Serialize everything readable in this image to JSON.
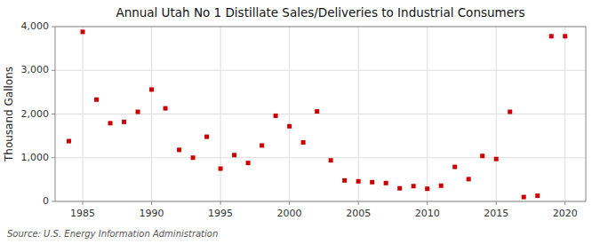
{
  "chart_data": {
    "type": "scatter",
    "title": "Annual Utah No 1 Distillate Sales/Deliveries to Industrial Consumers",
    "ylabel": "Thousand Gallons",
    "annotations": [
      "Source: U.S. Energy Information Administration"
    ],
    "x": [
      1984,
      1985,
      1986,
      1987,
      1988,
      1989,
      1990,
      1991,
      1992,
      1993,
      1994,
      1995,
      1996,
      1997,
      1998,
      1999,
      2000,
      2001,
      2002,
      2003,
      2004,
      2005,
      2006,
      2007,
      2008,
      2009,
      2010,
      2011,
      2012,
      2013,
      2014,
      2015,
      2016,
      2017,
      2018,
      2019,
      2020
    ],
    "values": [
      1380,
      3880,
      2330,
      1790,
      1820,
      2050,
      2560,
      2130,
      1180,
      1000,
      1480,
      750,
      1060,
      880,
      1280,
      1960,
      1720,
      1350,
      2060,
      940,
      480,
      460,
      440,
      420,
      300,
      350,
      290,
      360,
      790,
      510,
      1040,
      970,
      2050,
      100,
      130,
      3780,
      3780
    ],
    "color": "#cc0000",
    "marker": "square",
    "grid": true,
    "xlim": [
      1983,
      2021.5
    ],
    "ylim": [
      0,
      4000
    ],
    "xticks": [
      1985,
      1990,
      1995,
      2000,
      2005,
      2010,
      2015,
      2020
    ],
    "yticks": [
      0,
      {
        "value": 1000,
        "label": "1,000"
      },
      {
        "value": 2000,
        "label": "2,000"
      },
      {
        "value": 3000,
        "label": "3,000"
      },
      {
        "value": 4000,
        "label": "4,000"
      }
    ]
  }
}
